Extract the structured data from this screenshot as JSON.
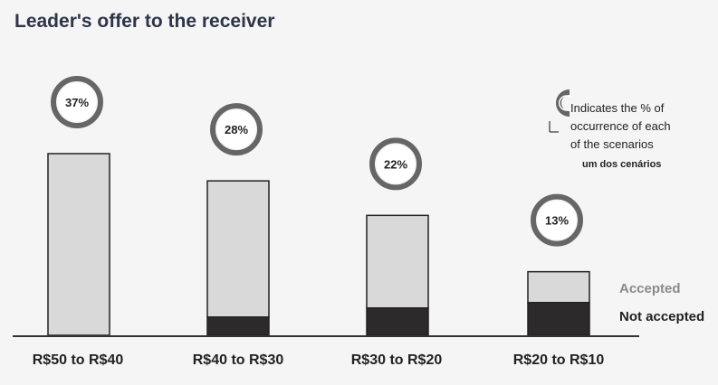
{
  "chart_data": {
    "type": "bar",
    "title": "Leader's offer to the receiver",
    "categories": [
      "R$50 to R$40",
      "R$40 to R$30",
      "R$30 to R$20",
      "R$20 to R$10"
    ],
    "series": [
      {
        "name": "Not accepted",
        "values": [
          0,
          10,
          15,
          18
        ]
      },
      {
        "name": "Accepted",
        "values": [
          100,
          75,
          51,
          17
        ]
      }
    ],
    "occurrence_labels": [
      "37%",
      "28%",
      "22%",
      "13%"
    ],
    "ylim": [
      0,
      100
    ],
    "grid": false,
    "legend": "right",
    "colors": {
      "accepted": "#d9d9d9",
      "not_accepted": "#2d2a2b",
      "ring": "#666666",
      "axis": "#333333"
    }
  },
  "legend_note": {
    "line1": "Indicates the % of",
    "line2": "occurrence of each",
    "line3": "of the scenarios",
    "line4": "um dos cenários"
  },
  "legend": {
    "accepted": "Accepted",
    "not_accepted": "Not accepted"
  }
}
